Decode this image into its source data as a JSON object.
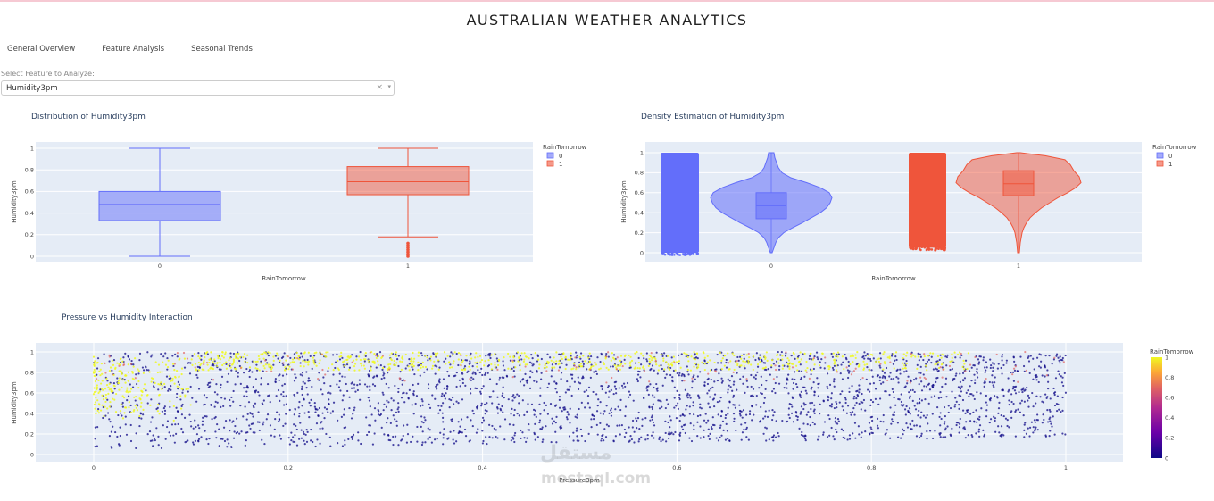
{
  "app": {
    "title": "AUSTRALIAN WEATHER ANALYTICS"
  },
  "tabs": [
    {
      "label": "General Overview"
    },
    {
      "label": "Feature Analysis"
    },
    {
      "label": "Seasonal Trends"
    }
  ],
  "selector": {
    "label": "Select Feature to Analyze:",
    "value": "Humidity3pm",
    "clear_icon": "×",
    "arrow_icon": "▾"
  },
  "legend": {
    "title": "RainTomorrow"
  },
  "colors": {
    "class0": "#636efa",
    "class1": "#ef553b",
    "plot_bg": "#e5ecf6"
  },
  "watermark": {
    "line1": "مستقل",
    "line2": "mostaql.com"
  },
  "chart_data": [
    {
      "type": "box",
      "title": "Distribution of Humidity3pm",
      "xlabel": "RainTomorrow",
      "ylabel": "Humidity3pm",
      "categories": [
        "0",
        "1"
      ],
      "ylim": [
        0,
        1
      ],
      "yticks": [
        0,
        0.2,
        0.4,
        0.6,
        0.8,
        1
      ],
      "series": [
        {
          "name": "0",
          "min": 0,
          "q1": 0.33,
          "median": 0.48,
          "q3": 0.6,
          "max": 1.0,
          "outliers": []
        },
        {
          "name": "1",
          "min": 0.18,
          "q1": 0.57,
          "median": 0.69,
          "q3": 0.83,
          "max": 1.0,
          "outliers": [
            0.0,
            0.02,
            0.04,
            0.06,
            0.08,
            0.1,
            0.12
          ]
        }
      ]
    },
    {
      "type": "violin",
      "title": "Density Estimation of Humidity3pm",
      "xlabel": "RainTomorrow",
      "ylabel": "Humidity3pm",
      "categories": [
        "0",
        "1"
      ],
      "ylim": [
        0,
        1
      ],
      "yticks": [
        0,
        0.2,
        0.4,
        0.6,
        0.8,
        1
      ],
      "series": [
        {
          "name": "0",
          "min": 0,
          "q1": 0.34,
          "median": 0.47,
          "q3": 0.6,
          "max": 1.0,
          "points_min": 0.0,
          "points_max": 1.0
        },
        {
          "name": "1",
          "min": 0,
          "q1": 0.57,
          "median": 0.69,
          "q3": 0.82,
          "max": 1.0,
          "points_min": 0.05,
          "points_max": 1.0
        }
      ]
    },
    {
      "type": "scatter",
      "title": "Pressure vs Humidity Interaction",
      "xlabel": "Pressure3pm",
      "ylabel": "Humidity3pm",
      "xlim": [
        0,
        1
      ],
      "ylim": [
        0,
        1
      ],
      "xticks": [
        0,
        0.2,
        0.4,
        0.6,
        0.8,
        1
      ],
      "yticks": [
        0,
        0.2,
        0.4,
        0.6,
        0.8,
        1
      ],
      "colorbar": {
        "title": "RainTomorrow",
        "ticks": [
          0,
          0.2,
          0.4,
          0.6,
          0.8,
          1
        ]
      }
    }
  ]
}
